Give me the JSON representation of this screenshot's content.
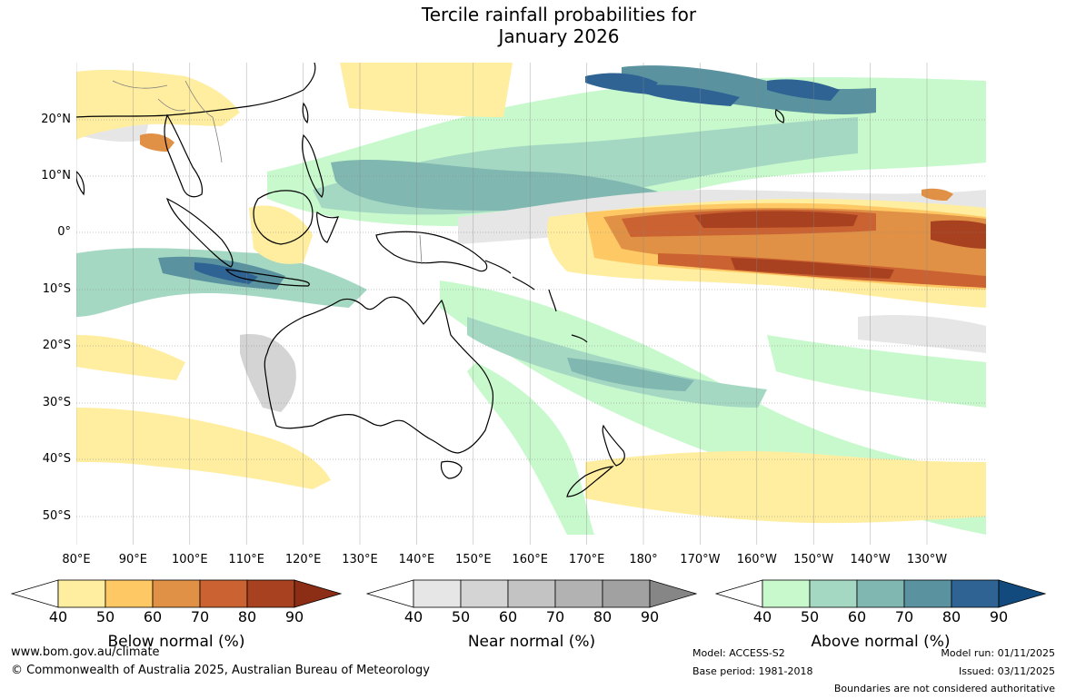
{
  "title": {
    "line1": "Tercile rainfall probabilities for",
    "line2": "January 2026"
  },
  "map": {
    "latitude_labels": [
      "20°N",
      "10°N",
      "0°",
      "10°S",
      "20°S",
      "30°S",
      "40°S",
      "50°S"
    ],
    "longitude_labels": [
      "80°E",
      "90°E",
      "100°E",
      "110°E",
      "120°E",
      "130°E",
      "140°E",
      "150°E",
      "160°E",
      "170°E",
      "180°",
      "170°W",
      "160°W",
      "150°W",
      "140°W",
      "130°W"
    ],
    "colors": {
      "below": [
        "#ffeda0",
        "#fec965",
        "#e09145",
        "#cb6231",
        "#a8411f",
        "#8c2e15"
      ],
      "near": [
        "#e6e6e6",
        "#d4d4d4",
        "#c3c3c3",
        "#b2b2b2",
        "#a1a1a1",
        "#868686"
      ],
      "above": [
        "#c8f9cd",
        "#a4d8c2",
        "#80b7b0",
        "#5a939f",
        "#2f6393",
        "#124a7d"
      ],
      "coastline": "#000000",
      "border": "#808080",
      "grid": "#888888"
    }
  },
  "legends": [
    {
      "id": "below",
      "title": "Below normal (%)",
      "ticks": [
        "40",
        "50",
        "60",
        "70",
        "80",
        "90"
      ]
    },
    {
      "id": "near",
      "title": "Near normal (%)",
      "ticks": [
        "40",
        "50",
        "60",
        "70",
        "80",
        "90"
      ]
    },
    {
      "id": "above",
      "title": "Above normal (%)",
      "ticks": [
        "40",
        "50",
        "60",
        "70",
        "80",
        "90"
      ]
    }
  ],
  "footer": {
    "url": "www.bom.gov.au/climate",
    "copyright": "© Commonwealth of Australia 2025, Australian Bureau of Meteorology",
    "model": "Model: ACCESS-S2",
    "base_period": "Base period: 1981-2018",
    "model_run": "Model run: 01/11/2025",
    "issued": "Issued: 03/11/2025",
    "disclaimer": "Boundaries are not considered authoritative"
  }
}
